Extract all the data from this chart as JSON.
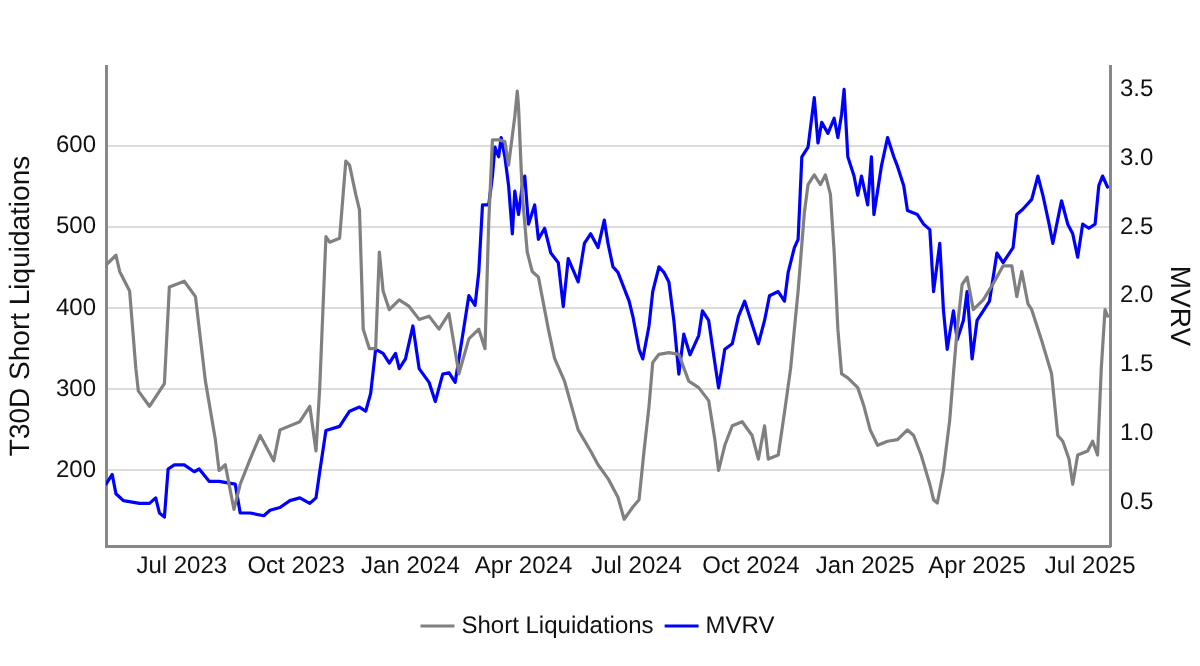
{
  "chart_data": {
    "type": "line",
    "ylabel": "T30D Short Liquidations",
    "y2label": "MVRV",
    "xlim": [
      "2023-05-01",
      "2025-07-17"
    ],
    "xticks": [
      {
        "value": "2023-07-01",
        "label": "Jul 2023"
      },
      {
        "value": "2023-10-01",
        "label": "Oct 2023"
      },
      {
        "value": "2024-01-01",
        "label": "Jan 2024"
      },
      {
        "value": "2024-04-01",
        "label": "Apr 2024"
      },
      {
        "value": "2024-07-01",
        "label": "Jul 2024"
      },
      {
        "value": "2024-10-01",
        "label": "Oct 2024"
      },
      {
        "value": "2025-01-01",
        "label": "Jan 2025"
      },
      {
        "value": "2025-04-01",
        "label": "Apr 2025"
      },
      {
        "value": "2025-07-01",
        "label": "Jul 2025"
      }
    ],
    "ylim": [
      107,
      698
    ],
    "yticks": [
      200,
      300,
      400,
      500,
      600
    ],
    "y2lim": [
      0.18,
      3.67
    ],
    "y2ticks": [
      0.5,
      {
        "value": 1,
        "label": "1.0"
      },
      1.5,
      {
        "value": 2,
        "label": "2.0"
      },
      2.5,
      {
        "value": 3,
        "label": "3.0"
      },
      3.5
    ],
    "grid": "y",
    "legend": "bottom",
    "marker": "none",
    "series": [
      {
        "name": "Short Liquidations",
        "color": "#808080",
        "x": [
          "2023-05-01",
          "2023-05-09",
          "2023-05-12",
          "2023-05-20",
          "2023-05-25",
          "2023-05-27",
          "2023-06-05",
          "2023-06-17",
          "2023-06-21",
          "2023-07-03",
          "2023-07-12",
          "2023-07-20",
          "2023-07-28",
          "2023-07-31",
          "2023-08-05",
          "2023-08-12",
          "2023-08-17",
          "2023-08-25",
          "2023-09-02",
          "2023-09-13",
          "2023-09-18",
          "2023-10-04",
          "2023-10-12",
          "2023-10-17",
          "2023-10-20",
          "2023-10-25",
          "2023-10-28",
          "2023-11-05",
          "2023-11-10",
          "2023-11-13",
          "2023-11-18",
          "2023-11-21",
          "2023-11-24",
          "2023-11-29",
          "2023-12-04",
          "2023-12-07",
          "2023-12-10",
          "2023-12-15",
          "2023-12-23",
          "2023-12-31",
          "2024-01-08",
          "2024-01-16",
          "2024-01-24",
          "2024-02-01",
          "2024-02-09",
          "2024-02-17",
          "2024-02-25",
          "2024-03-01",
          "2024-03-04",
          "2024-03-07",
          "2024-03-12",
          "2024-03-17",
          "2024-03-20",
          "2024-03-25",
          "2024-03-27",
          "2024-03-28",
          "2024-03-31",
          "2024-04-04",
          "2024-04-08",
          "2024-04-13",
          "2024-04-18",
          "2024-04-21",
          "2024-04-26",
          "2024-05-04",
          "2024-05-15",
          "2024-05-25",
          "2024-05-31",
          "2024-06-08",
          "2024-06-16",
          "2024-06-21",
          "2024-06-28",
          "2024-07-03",
          "2024-07-07",
          "2024-07-11",
          "2024-07-14",
          "2024-07-19",
          "2024-07-27",
          "2024-08-04",
          "2024-08-12",
          "2024-08-20",
          "2024-08-28",
          "2024-09-02",
          "2024-09-05",
          "2024-09-10",
          "2024-09-16",
          "2024-09-24",
          "2024-10-02",
          "2024-10-07",
          "2024-10-12",
          "2024-10-15",
          "2024-10-23",
          "2024-10-28",
          "2024-11-02",
          "2024-11-05",
          "2024-11-08",
          "2024-11-13",
          "2024-11-16",
          "2024-11-21",
          "2024-11-26",
          "2024-11-30",
          "2024-12-04",
          "2024-12-07",
          "2024-12-10",
          "2024-12-13",
          "2024-12-18",
          "2024-12-26",
          "2024-12-31",
          "2025-01-05",
          "2025-01-11",
          "2025-01-19",
          "2025-01-27",
          "2025-02-04",
          "2025-02-09",
          "2025-02-15",
          "2025-02-22",
          "2025-02-25",
          "2025-02-28",
          "2025-03-05",
          "2025-03-10",
          "2025-03-13",
          "2025-03-16",
          "2025-03-20",
          "2025-03-24",
          "2025-03-29",
          "2025-04-06",
          "2025-04-14",
          "2025-04-22",
          "2025-04-29",
          "2025-05-03",
          "2025-05-07",
          "2025-05-12",
          "2025-05-15",
          "2025-05-23",
          "2025-05-31",
          "2025-06-05",
          "2025-06-09",
          "2025-06-14",
          "2025-06-17",
          "2025-06-21",
          "2025-06-29",
          "2025-07-03",
          "2025-07-07",
          "2025-07-10",
          "2025-07-13",
          "2025-07-15"
        ],
        "values": [
          453,
          465,
          445,
          421,
          326,
          298,
          279,
          307,
          426,
          433,
          414,
          310,
          238,
          200,
          207,
          152,
          183,
          214,
          243,
          212,
          250,
          260,
          279,
          224,
          302,
          488,
          481,
          486,
          581,
          576,
          540,
          521,
          374,
          350,
          350,
          469,
          421,
          398,
          410,
          402,
          386,
          390,
          374,
          393,
          319,
          362,
          374,
          350,
          505,
          607,
          607,
          605,
          576,
          636,
          667,
          648,
          540,
          469,
          445,
          438,
          398,
          374,
          338,
          310,
          250,
          224,
          207,
          190,
          167,
          140,
          155,
          164,
          224,
          279,
          333,
          343,
          345,
          343,
          310,
          302,
          286,
          238,
          200,
          231,
          255,
          260,
          243,
          214,
          255,
          214,
          219,
          271,
          326,
          374,
          421,
          517,
          552,
          564,
          552,
          564,
          540,
          469,
          374,
          319,
          314,
          302,
          279,
          250,
          231,
          236,
          238,
          250,
          243,
          219,
          183,
          164,
          160,
          200,
          262,
          319,
          374,
          429,
          438,
          398,
          410,
          430,
          452,
          452,
          414,
          445,
          405,
          398,
          360,
          319,
          243,
          236,
          214,
          183,
          219,
          224,
          236,
          219,
          326,
          398,
          390
        ]
      },
      {
        "name": "MVRV",
        "color": "#0000ff",
        "axis": "y2",
        "x": [
          "2023-05-01",
          "2023-05-06",
          "2023-05-09",
          "2023-05-15",
          "2023-05-28",
          "2023-06-05",
          "2023-06-10",
          "2023-06-13",
          "2023-06-17",
          "2023-06-20",
          "2023-06-25",
          "2023-07-03",
          "2023-07-11",
          "2023-07-15",
          "2023-07-23",
          "2023-07-31",
          "2023-08-13",
          "2023-08-17",
          "2023-08-25",
          "2023-09-05",
          "2023-09-10",
          "2023-09-18",
          "2023-09-26",
          "2023-10-04",
          "2023-10-12",
          "2023-10-17",
          "2023-10-20",
          "2023-10-25",
          "2023-11-05",
          "2023-11-13",
          "2023-11-21",
          "2023-11-26",
          "2023-11-30",
          "2023-12-04",
          "2023-12-10",
          "2023-12-15",
          "2023-12-20",
          "2023-12-23",
          "2023-12-28",
          "2024-01-03",
          "2024-01-08",
          "2024-01-16",
          "2024-01-21",
          "2024-01-27",
          "2024-02-01",
          "2024-02-06",
          "2024-02-12",
          "2024-02-17",
          "2024-02-22",
          "2024-02-25",
          "2024-02-28",
          "2024-03-04",
          "2024-03-07",
          "2024-03-09",
          "2024-03-12",
          "2024-03-14",
          "2024-03-17",
          "2024-03-20",
          "2024-03-23",
          "2024-03-25",
          "2024-03-28",
          "2024-03-31",
          "2024-04-02",
          "2024-04-05",
          "2024-04-10",
          "2024-04-13",
          "2024-04-18",
          "2024-04-23",
          "2024-04-29",
          "2024-05-03",
          "2024-05-07",
          "2024-05-15",
          "2024-05-20",
          "2024-05-25",
          "2024-05-31",
          "2024-06-05",
          "2024-06-08",
          "2024-06-12",
          "2024-06-16",
          "2024-06-25",
          "2024-06-28",
          "2024-07-03",
          "2024-07-06",
          "2024-07-11",
          "2024-07-14",
          "2024-07-19",
          "2024-07-23",
          "2024-07-27",
          "2024-07-31",
          "2024-08-04",
          "2024-08-08",
          "2024-08-13",
          "2024-08-20",
          "2024-08-23",
          "2024-08-28",
          "2024-09-02",
          "2024-09-05",
          "2024-09-10",
          "2024-09-16",
          "2024-09-21",
          "2024-09-26",
          "2024-10-01",
          "2024-10-07",
          "2024-10-12",
          "2024-10-16",
          "2024-10-23",
          "2024-10-28",
          "2024-10-31",
          "2024-11-05",
          "2024-11-08",
          "2024-11-11",
          "2024-11-16",
          "2024-11-21",
          "2024-11-24",
          "2024-11-27",
          "2024-12-02",
          "2024-12-07",
          "2024-12-10",
          "2024-12-13",
          "2024-12-15",
          "2024-12-18",
          "2024-12-23",
          "2024-12-26",
          "2024-12-29",
          "2025-01-03",
          "2025-01-06",
          "2025-01-08",
          "2025-01-14",
          "2025-01-19",
          "2025-01-24",
          "2025-01-27",
          "2025-02-01",
          "2025-02-04",
          "2025-02-12",
          "2025-02-17",
          "2025-02-22",
          "2025-02-25",
          "2025-03-02",
          "2025-03-05",
          "2025-03-08",
          "2025-03-13",
          "2025-03-16",
          "2025-03-21",
          "2025-03-24",
          "2025-03-28",
          "2025-04-01",
          "2025-04-06",
          "2025-04-11",
          "2025-04-17",
          "2025-04-22",
          "2025-04-30",
          "2025-05-03",
          "2025-05-08",
          "2025-05-15",
          "2025-05-20",
          "2025-05-24",
          "2025-05-29",
          "2025-06-01",
          "2025-06-08",
          "2025-06-13",
          "2025-06-17",
          "2025-06-21",
          "2025-06-25",
          "2025-06-30",
          "2025-07-05",
          "2025-07-08",
          "2025-07-11",
          "2025-07-15"
        ],
        "values": [
          0.63,
          0.7,
          0.56,
          0.51,
          0.49,
          0.49,
          0.53,
          0.42,
          0.39,
          0.74,
          0.77,
          0.77,
          0.72,
          0.74,
          0.65,
          0.65,
          0.63,
          0.42,
          0.42,
          0.4,
          0.44,
          0.46,
          0.51,
          0.53,
          0.49,
          0.53,
          0.72,
          1.02,
          1.05,
          1.16,
          1.19,
          1.16,
          1.29,
          1.61,
          1.58,
          1.51,
          1.58,
          1.47,
          1.54,
          1.78,
          1.47,
          1.37,
          1.23,
          1.43,
          1.44,
          1.37,
          1.71,
          2.0,
          1.93,
          2.17,
          2.66,
          2.66,
          2.87,
          3.08,
          3.01,
          3.15,
          3.01,
          2.8,
          2.45,
          2.76,
          2.59,
          2.8,
          2.87,
          2.52,
          2.66,
          2.41,
          2.49,
          2.31,
          2.24,
          1.92,
          2.27,
          2.1,
          2.38,
          2.45,
          2.35,
          2.55,
          2.38,
          2.21,
          2.17,
          1.96,
          1.85,
          1.61,
          1.54,
          1.78,
          2.03,
          2.21,
          2.17,
          2.1,
          1.82,
          1.43,
          1.72,
          1.57,
          1.71,
          1.89,
          1.82,
          1.51,
          1.33,
          1.61,
          1.65,
          1.85,
          1.96,
          1.82,
          1.65,
          1.82,
          2.0,
          2.03,
          1.96,
          2.17,
          2.35,
          2.41,
          3.01,
          3.08,
          3.44,
          3.11,
          3.26,
          3.18,
          3.29,
          3.15,
          3.32,
          3.5,
          3.01,
          2.87,
          2.73,
          2.87,
          2.66,
          3.01,
          2.59,
          2.94,
          3.15,
          3.01,
          2.94,
          2.8,
          2.62,
          2.59,
          2.52,
          2.48,
          2.03,
          2.38,
          1.89,
          1.61,
          1.89,
          1.68,
          1.82,
          2.03,
          1.54,
          1.82,
          1.89,
          1.96,
          2.31,
          2.24,
          2.35,
          2.59,
          2.63,
          2.7,
          2.87,
          2.73,
          2.52,
          2.38,
          2.69,
          2.52,
          2.45,
          2.28,
          2.52,
          2.49,
          2.52,
          2.8,
          2.87,
          2.79
        ]
      }
    ]
  }
}
